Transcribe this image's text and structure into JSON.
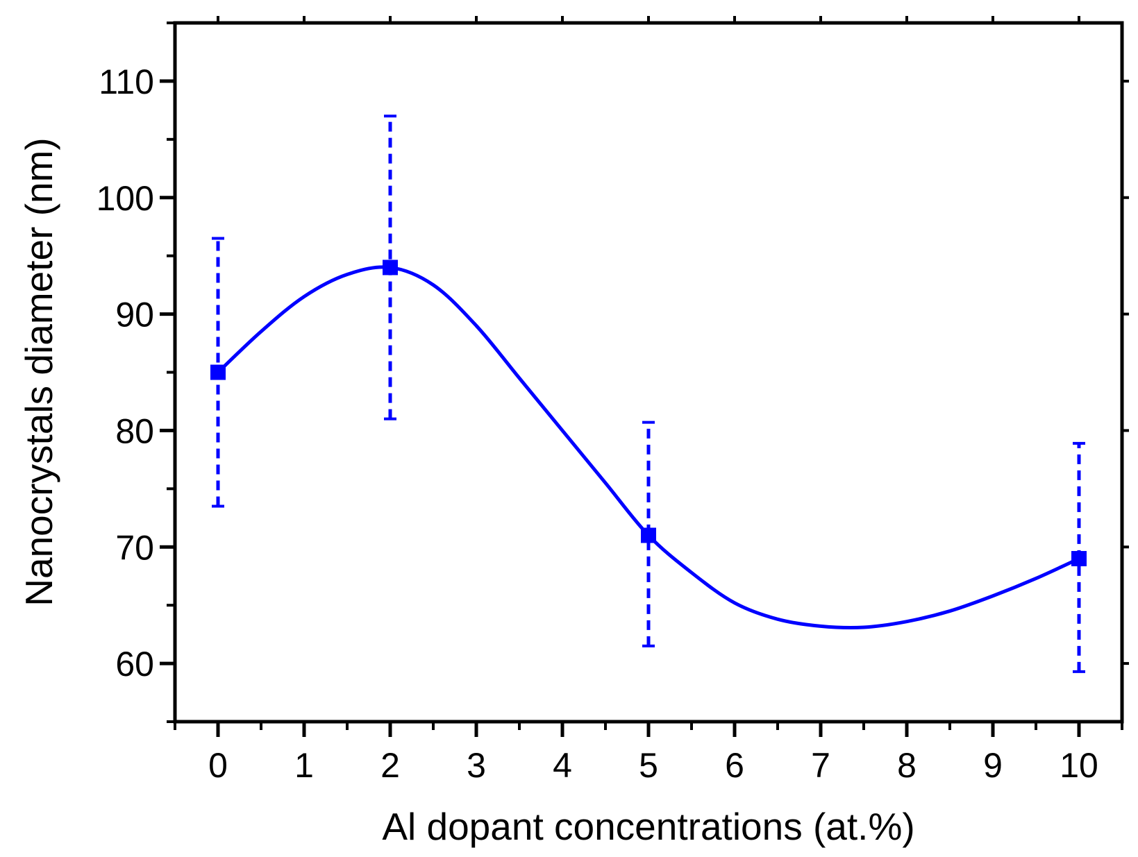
{
  "chart_data": {
    "type": "line",
    "xlabel": "Al dopant concentrations (at.%)",
    "ylabel": "Nanocrystals diameter (nm)",
    "xlim": [
      -0.5,
      10.5
    ],
    "ylim": [
      55,
      115
    ],
    "xticks": [
      0,
      1,
      2,
      3,
      4,
      5,
      6,
      7,
      8,
      9,
      10
    ],
    "yticks": [
      60,
      70,
      80,
      90,
      100,
      110
    ],
    "xtick_labels": [
      "0",
      "1",
      "2",
      "3",
      "4",
      "5",
      "6",
      "7",
      "8",
      "9",
      "10"
    ],
    "ytick_labels": [
      "60",
      "70",
      "80",
      "90",
      "100",
      "110"
    ],
    "grid": false,
    "series_color": "#0000ff",
    "series": [
      {
        "x": [
          0,
          2,
          5,
          10
        ],
        "y": [
          85,
          94,
          71,
          69
        ],
        "error_low": [
          73.5,
          81,
          61.5,
          59.3
        ],
        "error_high": [
          96.5,
          107,
          80.7,
          78.9
        ]
      }
    ],
    "fit_curve": {
      "x": [
        0,
        0.5,
        1,
        1.5,
        2,
        2.5,
        3,
        3.5,
        4,
        4.5,
        5,
        5.5,
        6,
        6.5,
        7,
        7.5,
        8,
        8.5,
        9,
        9.5,
        10
      ],
      "y": [
        85,
        88.5,
        91.5,
        93.4,
        94,
        92.5,
        89,
        84.5,
        80,
        75.5,
        71,
        67.8,
        65.2,
        63.8,
        63.2,
        63.1,
        63.6,
        64.5,
        65.8,
        67.3,
        69
      ]
    }
  }
}
